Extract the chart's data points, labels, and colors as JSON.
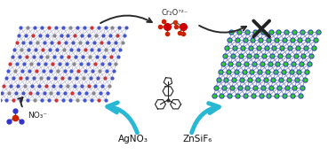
{
  "arrow_color": "#29B8D4",
  "arrow_label_left": "AgNO₃",
  "arrow_label_right": "ZnSiF₆",
  "no3_label": "NO₃⁻",
  "cr2o7_label": "Cr₂O⁷²⁻",
  "background": "#ffffff",
  "left_crystal_blue": "#4455cc",
  "left_crystal_red": "#cc3333",
  "left_crystal_grey": "#888888",
  "right_crystal_blue": "#3344bb",
  "right_crystal_green": "#33cc33",
  "dark_arrow_color": "#2a2a2a",
  "figsize": [
    3.78,
    1.75
  ],
  "dpi": 100
}
